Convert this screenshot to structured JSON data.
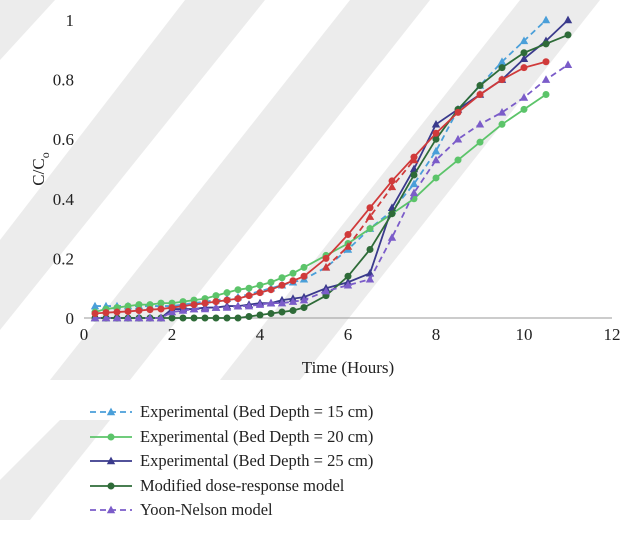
{
  "chart_data": {
    "type": "line",
    "xlabel": "Time (Hours)",
    "ylabel": "C/C",
    "ylabel_subscript": "o",
    "xlim": [
      0,
      12
    ],
    "ylim": [
      0,
      1
    ],
    "x_ticks": [
      "0",
      "2",
      "4",
      "6",
      "8",
      "10",
      "12"
    ],
    "y_ticks": [
      "0",
      "0.2",
      "0.4",
      "0.6",
      "0.8",
      "1"
    ],
    "grid": false,
    "legend_position": "bottom",
    "series": [
      {
        "name": "Experimental (Bed Depth = 15 cm)",
        "color": "#4a9fd9",
        "line": "dashed",
        "marker": "triangle",
        "x": [
          0.25,
          0.5,
          0.75,
          1.0,
          1.25,
          1.5,
          1.75,
          2.0,
          2.25,
          2.5,
          2.75,
          3.0,
          3.25,
          3.5,
          3.75,
          4.0,
          4.25,
          4.5,
          4.75,
          5.0,
          5.5,
          6.0,
          6.5,
          7.0,
          7.5,
          8.0,
          8.5,
          9.0,
          9.5,
          10.0,
          10.5
        ],
        "y": [
          0.04,
          0.04,
          0.04,
          0.04,
          0.04,
          0.04,
          0.04,
          0.04,
          0.045,
          0.05,
          0.055,
          0.06,
          0.065,
          0.07,
          0.08,
          0.09,
          0.1,
          0.11,
          0.12,
          0.13,
          0.17,
          0.23,
          0.3,
          0.36,
          0.45,
          0.56,
          0.7,
          0.78,
          0.86,
          0.93,
          1.0
        ]
      },
      {
        "name": "Experimental (Bed Depth = 20 cm)",
        "color": "#5cc46a",
        "line": "solid",
        "marker": "circle",
        "x": [
          0.25,
          0.5,
          0.75,
          1.0,
          1.25,
          1.5,
          1.75,
          2.0,
          2.25,
          2.5,
          2.75,
          3.0,
          3.25,
          3.5,
          3.75,
          4.0,
          4.25,
          4.5,
          4.75,
          5.0,
          5.5,
          6.0,
          6.5,
          7.0,
          7.5,
          8.0,
          8.5,
          9.0,
          9.5,
          10.0,
          10.5
        ],
        "y": [
          0.02,
          0.03,
          0.035,
          0.04,
          0.045,
          0.045,
          0.05,
          0.05,
          0.055,
          0.06,
          0.065,
          0.075,
          0.085,
          0.095,
          0.1,
          0.11,
          0.12,
          0.135,
          0.15,
          0.17,
          0.21,
          0.25,
          0.3,
          0.35,
          0.4,
          0.47,
          0.53,
          0.59,
          0.65,
          0.7,
          0.75
        ]
      },
      {
        "name": "Experimental (Bed Depth = 25 cm)",
        "color": "#3a3a8c",
        "line": "solid",
        "marker": "triangle",
        "x": [
          0.25,
          0.5,
          0.75,
          1.0,
          1.25,
          1.5,
          1.75,
          2.0,
          2.25,
          2.5,
          2.75,
          3.0,
          3.25,
          3.5,
          3.75,
          4.0,
          4.25,
          4.5,
          4.75,
          5.0,
          5.5,
          6.0,
          6.5,
          7.0,
          7.5,
          8.0,
          8.5,
          9.0,
          9.5,
          10.0,
          10.5,
          11.0
        ],
        "y": [
          0.0,
          0.0,
          0.0,
          0.0,
          0.0,
          0.0,
          0.0,
          0.03,
          0.03,
          0.03,
          0.035,
          0.035,
          0.04,
          0.04,
          0.045,
          0.05,
          0.05,
          0.06,
          0.065,
          0.07,
          0.1,
          0.12,
          0.15,
          0.37,
          0.5,
          0.65,
          0.7,
          0.75,
          0.8,
          0.87,
          0.93,
          1.0
        ]
      },
      {
        "name": "Modified dose-response model",
        "color": "#2e6b38",
        "line": "solid",
        "marker": "circle",
        "x": [
          0.25,
          0.5,
          0.75,
          1.0,
          1.25,
          1.5,
          1.75,
          2.0,
          2.25,
          2.5,
          2.75,
          3.0,
          3.25,
          3.5,
          3.75,
          4.0,
          4.25,
          4.5,
          4.75,
          5.0,
          5.5,
          6.0,
          6.5,
          7.0,
          7.5,
          8.0,
          8.5,
          9.0,
          9.5,
          10.0,
          10.5,
          11.0
        ],
        "y": [
          0.0,
          0.0,
          0.0,
          0.0,
          0.0,
          0.0,
          0.0,
          0.0,
          0.0,
          0.0,
          0.0,
          0.0,
          0.0,
          0.0,
          0.005,
          0.01,
          0.015,
          0.02,
          0.025,
          0.035,
          0.075,
          0.14,
          0.23,
          0.35,
          0.48,
          0.6,
          0.7,
          0.78,
          0.84,
          0.89,
          0.92,
          0.95
        ]
      },
      {
        "name": "Yoon-Nelson model",
        "color": "#7b5cc9",
        "line": "dashed",
        "marker": "triangle",
        "x": [
          0.25,
          0.5,
          0.75,
          1.0,
          1.25,
          1.5,
          1.75,
          2.0,
          2.25,
          2.5,
          2.75,
          3.0,
          3.25,
          3.5,
          3.75,
          4.0,
          4.25,
          4.5,
          4.75,
          5.0,
          5.5,
          6.0,
          6.5,
          7.0,
          7.5,
          8.0,
          8.5,
          9.0,
          9.5,
          10.0,
          10.5,
          11.0
        ],
        "y": [
          0.0,
          0.0,
          0.0,
          0.0,
          0.0,
          0.0,
          0.0,
          0.02,
          0.025,
          0.03,
          0.03,
          0.035,
          0.035,
          0.04,
          0.04,
          0.045,
          0.05,
          0.05,
          0.055,
          0.06,
          0.09,
          0.11,
          0.13,
          0.27,
          0.42,
          0.53,
          0.6,
          0.65,
          0.69,
          0.74,
          0.8,
          0.85
        ]
      },
      {
        "name": "",
        "color": "#d03a3a",
        "line": "solid",
        "marker": "circle",
        "x": [
          0.25,
          0.5,
          0.75,
          1.0,
          1.25,
          1.5,
          1.75,
          2.0,
          2.25,
          2.5,
          2.75,
          3.0,
          3.25,
          3.5,
          3.75,
          4.0,
          4.25,
          4.5,
          4.75,
          5.0,
          5.5,
          6.0,
          6.5,
          7.0,
          7.5,
          8.0,
          8.5,
          9.0,
          9.5,
          10.0,
          10.5
        ],
        "y": [
          0.015,
          0.018,
          0.02,
          0.022,
          0.025,
          0.028,
          0.03,
          0.035,
          0.04,
          0.045,
          0.05,
          0.055,
          0.06,
          0.065,
          0.075,
          0.085,
          0.095,
          0.11,
          0.125,
          0.14,
          0.2,
          0.28,
          0.37,
          0.46,
          0.54,
          0.62,
          0.69,
          0.75,
          0.8,
          0.84,
          0.86
        ]
      },
      {
        "name": "",
        "color": "#d03a3a",
        "line": "dashed",
        "marker": "triangle",
        "x": [
          5.5,
          6.0,
          6.5,
          7.0,
          7.5
        ],
        "y": [
          0.17,
          0.24,
          0.34,
          0.44,
          0.53
        ]
      }
    ],
    "legend": [
      {
        "label": "Experimental (Bed Depth = 15 cm)",
        "color": "#4a9fd9",
        "line": "dashed",
        "marker": "triangle"
      },
      {
        "label": "Experimental (Bed Depth = 20 cm)",
        "color": "#5cc46a",
        "line": "solid",
        "marker": "circle"
      },
      {
        "label": "Experimental (Bed Depth = 25 cm)",
        "color": "#3a3a8c",
        "line": "solid",
        "marker": "triangle"
      },
      {
        "label": "Modified dose-response model",
        "color": "#2e6b38",
        "line": "solid",
        "marker": "circle"
      },
      {
        "label": "Yoon-Nelson model",
        "color": "#7b5cc9",
        "line": "dashed",
        "marker": "triangle"
      }
    ]
  }
}
